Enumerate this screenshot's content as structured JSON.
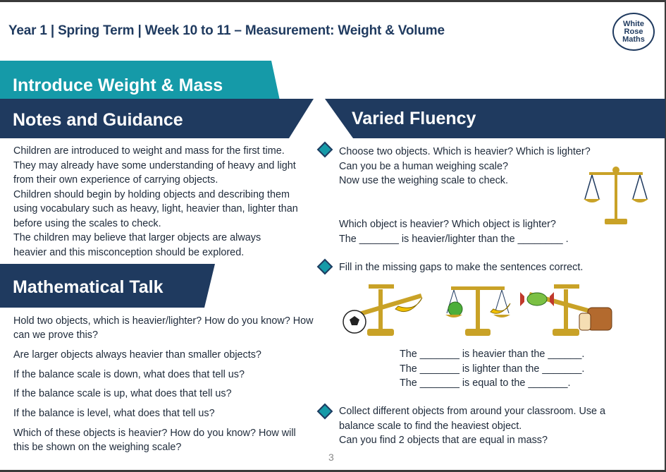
{
  "header": {
    "title": "Year 1 |  Spring Term  | Week 10 to 11 – Measurement: Weight & Volume"
  },
  "logo": {
    "line1": "White",
    "line2": "Rose",
    "line3": "Maths"
  },
  "banner": {
    "title": "Introduce Weight & Mass"
  },
  "notes": {
    "heading": "Notes and Guidance",
    "lines": [
      "Children are introduced to weight and mass for the first time.",
      "They may already have some understanding of heavy and light",
      "from their own experience of carrying objects.",
      "Children should begin by holding objects and describing them",
      "using vocabulary such as heavy, light, heavier than, lighter than",
      "before using the scales to check.",
      "The children may believe that larger objects are always",
      "heavier and this misconception should be explored."
    ]
  },
  "math_talk": {
    "heading": "Mathematical Talk",
    "items": [
      "Hold two objects, which is heavier/lighter? How do you know? How can we prove this?",
      "Are larger objects always heavier than smaller objects?",
      "If the balance scale is down, what does that tell us?",
      "If the balance scale is up, what does that tell us?",
      "If the balance is level, what does that tell us?",
      "Which of these objects is heavier? How do you know? How will this be shown on the weighing scale?"
    ]
  },
  "fluency": {
    "heading": "Varied Fluency",
    "q1": {
      "lines": [
        "Choose two objects. Which is heavier?  Which is lighter?",
        "Can you be a human weighing scale?",
        "Now use the weighing scale to check."
      ],
      "follow": [
        "Which object is heavier? Which object is lighter?",
        "The _______ is heavier/lighter than the ________  ."
      ]
    },
    "q2": {
      "line": "Fill in the missing gaps to make the sentences correct.",
      "sentences": [
        "The _______ is heavier than the ______.",
        "The _______ is lighter than the _______.",
        "The _______ is equal to the  _______."
      ]
    },
    "q3": {
      "lines": [
        "Collect different objects from around your classroom. Use a",
        "balance scale to find the heaviest object.",
        "Can you find 2 objects that are equal in mass?"
      ]
    }
  },
  "page_number": "3",
  "colors": {
    "navy": "#1f3a5f",
    "teal": "#159aa8",
    "gold": "#c9a227"
  }
}
